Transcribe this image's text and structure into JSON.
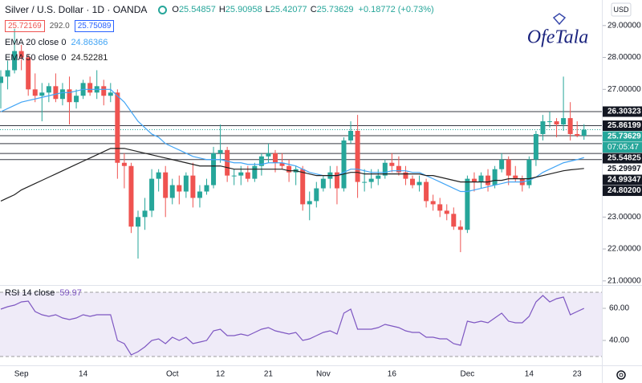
{
  "chart_data": {
    "type": "candlestick",
    "title": "Silver / U.S. Dollar · 1D · OANDA",
    "ohlc_legend": [
      {
        "label": "O",
        "value": "25.54857"
      },
      {
        "label": "H",
        "value": "25.90958"
      },
      {
        "label": "L",
        "value": "25.42077"
      },
      {
        "label": "C",
        "value": "25.73629"
      }
    ],
    "change": "+0.18772 (+0.73%)",
    "bid": "25.72169",
    "spread": "292.0",
    "ask": "25.75089",
    "currency": "USD",
    "logo": "OfeTala",
    "up_color": "#26a69a",
    "down_color": "#ef5350",
    "categories": [
      null,
      null,
      null,
      "Sep",
      null,
      null,
      null,
      null,
      null,
      null,
      null,
      null,
      "14",
      null,
      null,
      null,
      null,
      null,
      null,
      null,
      null,
      null,
      null,
      null,
      null,
      "Oct",
      null,
      null,
      null,
      null,
      null,
      null,
      "12",
      null,
      null,
      null,
      null,
      null,
      null,
      "21",
      null,
      null,
      null,
      null,
      null,
      null,
      null,
      "Nov",
      null,
      null,
      null,
      null,
      null,
      null,
      null,
      null,
      null,
      "16",
      null,
      null,
      null,
      null,
      null,
      null,
      null,
      null,
      null,
      null,
      "Dec",
      null,
      null,
      null,
      null,
      null,
      null,
      null,
      null,
      "14",
      null,
      null,
      null,
      null,
      null,
      null,
      "23",
      null
    ],
    "open": [
      27.2,
      27.4,
      27.6,
      28.2,
      28.0,
      27.0,
      26.8,
      26.9,
      27.1,
      26.7,
      27.0,
      26.6,
      26.8,
      27.2,
      26.9,
      27.1,
      26.8,
      26.9,
      24.7,
      24.6,
      22.7,
      23.0,
      23.2,
      24.2,
      24.4,
      23.6,
      24.0,
      23.8,
      24.3,
      23.6,
      23.8,
      24.0,
      25.0,
      25.1,
      24.3,
      24.3,
      24.4,
      24.2,
      24.6,
      24.9,
      25.0,
      24.7,
      24.6,
      24.4,
      24.5,
      23.4,
      23.5,
      23.9,
      24.2,
      24.4,
      23.9,
      25.4,
      25.7,
      24.1,
      24.1,
      24.2,
      24.3,
      24.7,
      24.6,
      24.4,
      24.2,
      24.0,
      24.1,
      23.5,
      23.4,
      23.2,
      23.1,
      22.7,
      22.6,
      24.2,
      24.1,
      24.3,
      24.0,
      24.5,
      24.8,
      24.3,
      24.2,
      24.0,
      24.8,
      25.6,
      26.0,
      26.0,
      25.9,
      26.1,
      25.6,
      25.54857
    ],
    "high": [
      27.6,
      27.9,
      28.9,
      28.4,
      28.1,
      27.5,
      27.2,
      27.2,
      27.5,
      27.2,
      27.4,
      27.0,
      27.3,
      27.4,
      27.6,
      27.3,
      27.2,
      27.0,
      25.0,
      24.7,
      23.2,
      23.6,
      24.5,
      24.5,
      24.6,
      24.2,
      24.3,
      24.4,
      24.7,
      24.0,
      24.2,
      25.2,
      25.9,
      25.2,
      24.5,
      24.6,
      24.6,
      24.7,
      25.0,
      25.3,
      25.1,
      25.0,
      24.8,
      24.6,
      24.6,
      23.8,
      24.1,
      24.3,
      24.6,
      24.6,
      25.5,
      26.0,
      26.2,
      24.5,
      24.5,
      24.5,
      24.8,
      25.0,
      24.9,
      24.6,
      24.3,
      24.3,
      24.2,
      23.7,
      23.6,
      23.4,
      23.3,
      22.9,
      24.3,
      24.4,
      24.4,
      24.5,
      24.6,
      25.0,
      24.9,
      24.6,
      24.3,
      24.9,
      25.7,
      26.2,
      26.3,
      26.1,
      27.4,
      26.6,
      26.0,
      25.90958
    ],
    "low": [
      26.4,
      27.0,
      27.5,
      27.6,
      26.8,
      26.6,
      26.0,
      26.6,
      26.6,
      26.5,
      25.9,
      26.4,
      26.7,
      26.8,
      26.7,
      26.5,
      26.6,
      24.2,
      23.9,
      22.5,
      21.7,
      22.6,
      23.0,
      23.8,
      23.0,
      23.4,
      23.4,
      23.6,
      23.3,
      23.3,
      23.7,
      23.9,
      24.7,
      24.1,
      24.0,
      24.0,
      24.1,
      24.1,
      24.3,
      24.7,
      24.4,
      24.5,
      24.1,
      24.0,
      23.2,
      22.9,
      23.3,
      23.8,
      23.9,
      23.4,
      23.8,
      25.3,
      23.6,
      23.8,
      23.9,
      24.0,
      24.2,
      24.4,
      24.3,
      24.0,
      23.9,
      23.8,
      23.3,
      23.2,
      23.0,
      22.9,
      22.6,
      21.9,
      22.5,
      23.8,
      23.9,
      23.8,
      23.9,
      24.4,
      24.0,
      24.1,
      23.8,
      23.9,
      24.6,
      25.4,
      25.8,
      25.5,
      25.7,
      25.4,
      25.5,
      25.42077
    ],
    "close": [
      27.4,
      27.6,
      28.2,
      28.0,
      27.0,
      26.8,
      26.9,
      27.1,
      26.7,
      27.0,
      26.6,
      26.8,
      27.2,
      26.9,
      27.1,
      26.8,
      26.9,
      24.7,
      24.6,
      22.7,
      23.0,
      23.2,
      24.2,
      24.4,
      23.6,
      24.0,
      23.8,
      24.3,
      23.6,
      23.8,
      24.0,
      25.0,
      25.1,
      24.3,
      24.3,
      24.4,
      24.2,
      24.6,
      24.9,
      25.0,
      24.7,
      24.6,
      24.4,
      24.5,
      23.4,
      23.5,
      23.9,
      24.2,
      24.4,
      23.9,
      25.4,
      25.7,
      24.1,
      24.1,
      24.2,
      24.3,
      24.7,
      24.6,
      24.4,
      24.2,
      24.0,
      24.1,
      23.5,
      23.4,
      23.2,
      23.1,
      22.7,
      22.6,
      24.2,
      24.1,
      24.3,
      24.0,
      24.5,
      24.8,
      24.3,
      24.2,
      24.0,
      24.8,
      25.6,
      26.0,
      26.0,
      25.9,
      26.1,
      25.6,
      25.54857,
      25.73629
    ],
    "series": [
      {
        "name": "EMA 20 close 0",
        "color": "#42a5f5",
        "value_label": "24.86366",
        "values": [
          26.3,
          26.4,
          26.5,
          26.6,
          26.65,
          26.7,
          26.75,
          26.8,
          26.85,
          26.9,
          26.9,
          26.95,
          27.0,
          27.0,
          27.0,
          27.0,
          27.0,
          26.8,
          26.6,
          26.3,
          26.0,
          25.8,
          25.6,
          25.5,
          25.3,
          25.2,
          25.1,
          25.0,
          24.9,
          24.85,
          24.8,
          24.8,
          24.8,
          24.75,
          24.7,
          24.7,
          24.65,
          24.65,
          24.65,
          24.7,
          24.7,
          24.7,
          24.65,
          24.6,
          24.5,
          24.4,
          24.35,
          24.3,
          24.3,
          24.3,
          24.4,
          24.5,
          24.5,
          24.45,
          24.4,
          24.4,
          24.4,
          24.45,
          24.45,
          24.45,
          24.4,
          24.4,
          24.3,
          24.2,
          24.1,
          24.0,
          23.9,
          23.8,
          23.8,
          23.85,
          23.9,
          23.95,
          24.0,
          24.05,
          24.1,
          24.1,
          24.1,
          24.15,
          24.25,
          24.4,
          24.5,
          24.6,
          24.7,
          24.75,
          24.8,
          24.86366
        ]
      },
      {
        "name": "EMA 50 close 0",
        "color": "#212121",
        "value_label": "24.52281",
        "values": [
          23.5,
          23.6,
          23.7,
          23.85,
          23.95,
          24.05,
          24.15,
          24.25,
          24.35,
          24.45,
          24.55,
          24.65,
          24.75,
          24.85,
          24.95,
          25.05,
          25.15,
          25.15,
          25.15,
          25.1,
          25.05,
          25.0,
          24.95,
          24.9,
          24.85,
          24.8,
          24.75,
          24.7,
          24.65,
          24.6,
          24.6,
          24.6,
          24.6,
          24.55,
          24.5,
          24.5,
          24.5,
          24.5,
          24.5,
          24.5,
          24.5,
          24.5,
          24.45,
          24.45,
          24.4,
          24.35,
          24.3,
          24.3,
          24.3,
          24.3,
          24.35,
          24.4,
          24.4,
          24.35,
          24.35,
          24.35,
          24.35,
          24.35,
          24.35,
          24.35,
          24.35,
          24.35,
          24.3,
          24.3,
          24.25,
          24.2,
          24.15,
          24.1,
          24.1,
          24.1,
          24.1,
          24.1,
          24.15,
          24.15,
          24.2,
          24.2,
          24.2,
          24.2,
          24.25,
          24.3,
          24.35,
          24.4,
          24.45,
          24.48,
          24.5,
          24.52281
        ]
      }
    ],
    "levels": [
      {
        "value": 26.30323,
        "label": "26.30323",
        "color": "#131722",
        "boxed": true
      },
      {
        "value": 25.86199,
        "label": "25.86199",
        "color": "#131722",
        "boxed": true
      },
      {
        "value": 25.73629,
        "label": "25.73629",
        "color": "#26a69a",
        "boxed": true,
        "countdown": "07:05:47"
      },
      {
        "value": 25.54825,
        "label": "25.54825",
        "color": "#131722",
        "boxed": true
      },
      {
        "value": 25.29997,
        "label": "25.29997",
        "color": "#131722",
        "boxed": false
      },
      {
        "value": 24.99347,
        "label": "24.99347",
        "color": "#131722",
        "boxed": true
      },
      {
        "value": 24.802,
        "label": "24.80200",
        "color": "#131722",
        "boxed": true
      }
    ],
    "ylim": [
      20.87,
      29.8
    ],
    "yticks": [
      {
        "value": 29,
        "label": "29.00000"
      },
      {
        "value": 28,
        "label": "28.00000"
      },
      {
        "value": 27,
        "label": "27.00000"
      },
      {
        "value": 23,
        "label": "23.00000"
      },
      {
        "value": 22,
        "label": "22.00000"
      },
      {
        "value": 21,
        "label": "21.00000"
      }
    ],
    "rsi": {
      "name": "RSI 14 close",
      "value_label": "59.97",
      "color": "#7e57c2",
      "band": [
        30,
        70
      ],
      "ylim": [
        24.5,
        74
      ],
      "yticks": [
        {
          "value": 60,
          "label": "60.00"
        },
        {
          "value": 40,
          "label": "40.00"
        }
      ],
      "values": [
        59.5,
        61,
        62,
        64,
        64.5,
        58,
        56,
        55,
        56,
        54,
        53,
        54,
        56,
        55,
        56,
        56,
        56,
        40,
        38,
        31,
        33,
        36,
        40,
        41,
        38,
        42,
        40,
        42,
        38,
        39,
        40,
        46,
        47,
        43,
        43,
        44,
        43,
        45,
        47,
        48,
        46,
        45,
        44,
        45,
        40,
        41,
        43,
        45,
        46,
        44,
        57,
        59.5,
        47,
        47,
        47,
        48,
        50,
        49,
        48,
        46,
        45,
        45,
        42,
        42,
        41,
        41,
        38,
        37,
        52,
        51,
        52,
        51,
        54,
        57,
        52,
        51,
        51,
        55,
        64,
        68,
        64,
        66,
        67,
        56,
        58,
        59.97
      ]
    }
  }
}
